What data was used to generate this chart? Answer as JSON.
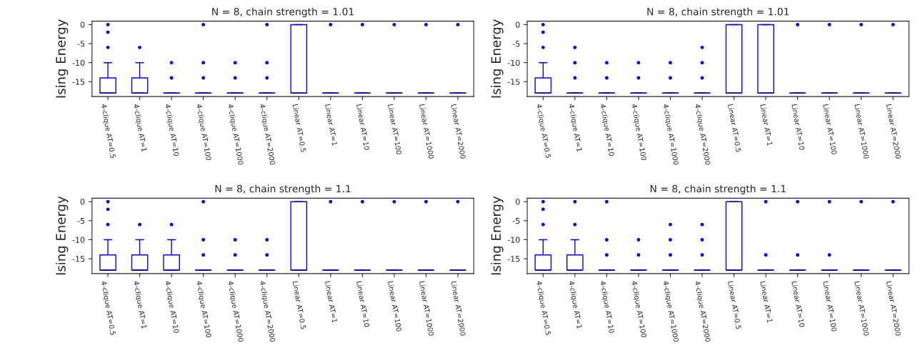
{
  "chart_data": [
    {
      "type": "box",
      "title": "N = 8, chain strength = 1.01",
      "ylabel": "Ising Energy",
      "ylim": [
        -18.9,
        0.9
      ],
      "yticks": [
        -15,
        -10,
        -5,
        0
      ],
      "grid": false,
      "legend": false,
      "marker": "circle",
      "categories": [
        "4-clique AT=0.5",
        "4-clique AT=1",
        "4-clique AT=10",
        "4-clique AT=100",
        "4-clique AT=1000",
        "4-clique AT=2000",
        "Linear AT=0.5",
        "Linear AT=1",
        "Linear AT=10",
        "Linear AT=100",
        "Linear AT=1000",
        "Linear AT=2000"
      ],
      "series": [
        {
          "color": "#0000ff",
          "boxes": [
            {
              "low": -18,
              "q1": -18,
              "median": -18,
              "q3": -14,
              "high": -10,
              "outliers": [
                -6,
                -2,
                0
              ]
            },
            {
              "low": -18,
              "q1": -18,
              "median": -18,
              "q3": -14,
              "high": -10,
              "outliers": [
                -6
              ]
            },
            {
              "low": -18,
              "q1": -18,
              "median": -18,
              "q3": -18,
              "high": -18,
              "outliers": [
                -14,
                -10
              ]
            },
            {
              "low": -18,
              "q1": -18,
              "median": -18,
              "q3": -18,
              "high": -18,
              "outliers": [
                -14,
                -10,
                0
              ]
            },
            {
              "low": -18,
              "q1": -18,
              "median": -18,
              "q3": -18,
              "high": -18,
              "outliers": [
                -14,
                -10
              ]
            },
            {
              "low": -18,
              "q1": -18,
              "median": -18,
              "q3": -18,
              "high": -18,
              "outliers": [
                -14,
                -10,
                0
              ]
            },
            {
              "low": -18,
              "q1": -18,
              "median": -18,
              "q3": 0,
              "high": 0
            },
            {
              "low": -18,
              "q1": -18,
              "median": -18,
              "q3": -18,
              "high": -18,
              "outliers": [
                0
              ]
            },
            {
              "low": -18,
              "q1": -18,
              "median": -18,
              "q3": -18,
              "high": -18,
              "outliers": [
                0
              ]
            },
            {
              "low": -18,
              "q1": -18,
              "median": -18,
              "q3": -18,
              "high": -18,
              "outliers": [
                0
              ]
            },
            {
              "low": -18,
              "q1": -18,
              "median": -18,
              "q3": -18,
              "high": -18,
              "outliers": [
                0
              ]
            },
            {
              "low": -18,
              "q1": -18,
              "median": -18,
              "q3": -18,
              "high": -18,
              "outliers": [
                0
              ]
            }
          ]
        }
      ]
    },
    {
      "type": "box",
      "title": "N = 8, chain strength = 1.01",
      "ylabel": "Ising Energy",
      "ylim": [
        -18.9,
        0.9
      ],
      "yticks": [
        -15,
        -10,
        -5,
        0
      ],
      "grid": false,
      "legend": false,
      "marker": "circle",
      "categories": [
        "4-clique AT=0.5",
        "4-clique AT=1",
        "4-clique AT=10",
        "4-clique AT=100",
        "4-clique AT=1000",
        "4-clique AT=2000",
        "Linear AT=0.5",
        "Linear AT=1",
        "Linear AT=10",
        "Linear AT=100",
        "Linear AT=1000",
        "Linear AT=2000"
      ],
      "series": [
        {
          "color": "#0000ff",
          "boxes": [
            {
              "low": -18,
              "q1": -18,
              "median": -18,
              "q3": -14,
              "high": -10,
              "outliers": [
                -6,
                -2,
                0
              ]
            },
            {
              "low": -18,
              "q1": -18,
              "median": -18,
              "q3": -18,
              "high": -18,
              "outliers": [
                -14,
                -10,
                -6
              ]
            },
            {
              "low": -18,
              "q1": -18,
              "median": -18,
              "q3": -18,
              "high": -18,
              "outliers": [
                -14,
                -10
              ]
            },
            {
              "low": -18,
              "q1": -18,
              "median": -18,
              "q3": -18,
              "high": -18,
              "outliers": [
                -14,
                -10
              ]
            },
            {
              "low": -18,
              "q1": -18,
              "median": -18,
              "q3": -18,
              "high": -18,
              "outliers": [
                -14,
                -10
              ]
            },
            {
              "low": -18,
              "q1": -18,
              "median": -18,
              "q3": -18,
              "high": -18,
              "outliers": [
                -14,
                -10,
                -6
              ]
            },
            {
              "low": -18,
              "q1": -18,
              "median": -18,
              "q3": 0,
              "high": 0
            },
            {
              "low": -18,
              "q1": -18,
              "median": -18,
              "q3": 0,
              "high": 0
            },
            {
              "low": -18,
              "q1": -18,
              "median": -18,
              "q3": -18,
              "high": -18,
              "outliers": [
                0
              ]
            },
            {
              "low": -18,
              "q1": -18,
              "median": -18,
              "q3": -18,
              "high": -18,
              "outliers": [
                0
              ]
            },
            {
              "low": -18,
              "q1": -18,
              "median": -18,
              "q3": -18,
              "high": -18,
              "outliers": [
                0
              ]
            },
            {
              "low": -18,
              "q1": -18,
              "median": -18,
              "q3": -18,
              "high": -18,
              "outliers": [
                0
              ]
            }
          ]
        }
      ]
    },
    {
      "type": "box",
      "title": "N = 8, chain strength = 1.1",
      "ylabel": "Ising Energy",
      "ylim": [
        -18.9,
        0.9
      ],
      "yticks": [
        -15,
        -10,
        -5,
        0
      ],
      "grid": false,
      "legend": false,
      "marker": "circle",
      "categories": [
        "4-clique AT=0.5",
        "4-clique AT=1",
        "4-clique AT=10",
        "4-clique AT=100",
        "4-clique AT=1000",
        "4-clique AT=2000",
        "Linear AT=0.5",
        "Linear AT=1",
        "Linear AT=10",
        "Linear AT=100",
        "Linear AT=1000",
        "Linear AT=2000"
      ],
      "series": [
        {
          "color": "#0000ff",
          "boxes": [
            {
              "low": -18,
              "q1": -18,
              "median": -18,
              "q3": -14,
              "high": -10,
              "outliers": [
                -6,
                -2,
                0
              ]
            },
            {
              "low": -18,
              "q1": -18,
              "median": -18,
              "q3": -14,
              "high": -10,
              "outliers": [
                -6
              ]
            },
            {
              "low": -18,
              "q1": -18,
              "median": -18,
              "q3": -14,
              "high": -10,
              "outliers": [
                -6
              ]
            },
            {
              "low": -18,
              "q1": -18,
              "median": -18,
              "q3": -18,
              "high": -18,
              "outliers": [
                -14,
                -10,
                0
              ]
            },
            {
              "low": -18,
              "q1": -18,
              "median": -18,
              "q3": -18,
              "high": -18,
              "outliers": [
                -14,
                -10
              ]
            },
            {
              "low": -18,
              "q1": -18,
              "median": -18,
              "q3": -18,
              "high": -18,
              "outliers": [
                -14,
                -10
              ]
            },
            {
              "low": -18,
              "q1": -18,
              "median": -18,
              "q3": 0,
              "high": 0
            },
            {
              "low": -18,
              "q1": -18,
              "median": -18,
              "q3": -18,
              "high": -18,
              "outliers": [
                0
              ]
            },
            {
              "low": -18,
              "q1": -18,
              "median": -18,
              "q3": -18,
              "high": -18,
              "outliers": [
                0
              ]
            },
            {
              "low": -18,
              "q1": -18,
              "median": -18,
              "q3": -18,
              "high": -18,
              "outliers": [
                0
              ]
            },
            {
              "low": -18,
              "q1": -18,
              "median": -18,
              "q3": -18,
              "high": -18,
              "outliers": [
                0
              ]
            },
            {
              "low": -18,
              "q1": -18,
              "median": -18,
              "q3": -18,
              "high": -18,
              "outliers": [
                0
              ]
            }
          ]
        }
      ]
    },
    {
      "type": "box",
      "title": "N = 8, chain strength = 1.1",
      "ylabel": "Ising Energy",
      "ylim": [
        -18.9,
        0.9
      ],
      "yticks": [
        -15,
        -10,
        -5,
        0
      ],
      "grid": false,
      "legend": false,
      "marker": "circle",
      "categories": [
        "4-clique AT=0.5",
        "4-clique AT=1",
        "4-clique AT=10",
        "4-clique AT=100",
        "4-clique AT=1000",
        "4-clique AT=2000",
        "Linear AT=0.5",
        "Linear AT=1",
        "Linear AT=10",
        "Linear AT=100",
        "Linear AT=1000",
        "Linear AT=2000"
      ],
      "series": [
        {
          "color": "#0000ff",
          "boxes": [
            {
              "low": -18,
              "q1": -18,
              "median": -18,
              "q3": -14,
              "high": -10,
              "outliers": [
                -6,
                -2,
                0
              ]
            },
            {
              "low": -18,
              "q1": -18,
              "median": -18,
              "q3": -14,
              "high": -10,
              "outliers": [
                -6,
                0
              ]
            },
            {
              "low": -18,
              "q1": -18,
              "median": -18,
              "q3": -18,
              "high": -18,
              "outliers": [
                -14,
                -10,
                0
              ]
            },
            {
              "low": -18,
              "q1": -18,
              "median": -18,
              "q3": -18,
              "high": -18,
              "outliers": [
                -14,
                -10
              ]
            },
            {
              "low": -18,
              "q1": -18,
              "median": -18,
              "q3": -18,
              "high": -18,
              "outliers": [
                -14,
                -10,
                -6
              ]
            },
            {
              "low": -18,
              "q1": -18,
              "median": -18,
              "q3": -18,
              "high": -18,
              "outliers": [
                -14,
                -10,
                -6
              ]
            },
            {
              "low": -18,
              "q1": -18,
              "median": -18,
              "q3": 0,
              "high": 0
            },
            {
              "low": -18,
              "q1": -18,
              "median": -18,
              "q3": -18,
              "high": -18,
              "outliers": [
                -14,
                0
              ]
            },
            {
              "low": -18,
              "q1": -18,
              "median": -18,
              "q3": -18,
              "high": -18,
              "outliers": [
                -14,
                0
              ]
            },
            {
              "low": -18,
              "q1": -18,
              "median": -18,
              "q3": -18,
              "high": -18,
              "outliers": [
                -14,
                0
              ]
            },
            {
              "low": -18,
              "q1": -18,
              "median": -18,
              "q3": -18,
              "high": -18,
              "outliers": [
                0
              ]
            },
            {
              "low": -18,
              "q1": -18,
              "median": -18,
              "q3": -18,
              "high": -18,
              "outliers": [
                0
              ]
            }
          ]
        }
      ]
    }
  ]
}
